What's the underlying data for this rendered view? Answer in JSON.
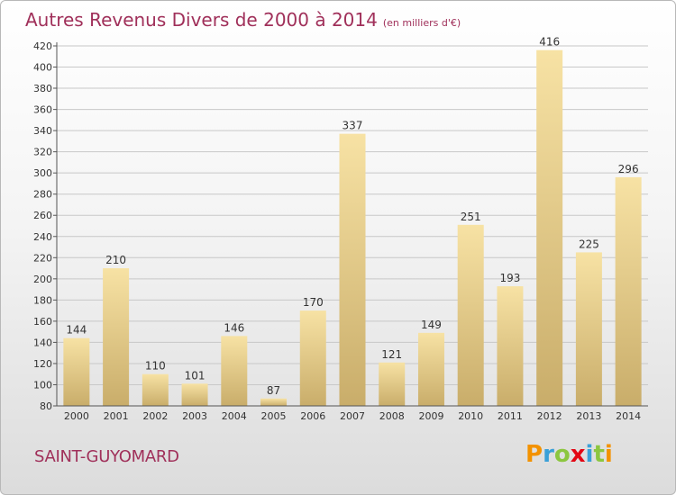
{
  "title": "Autres Revenus Divers de 2000 à 2014",
  "unit": "(en milliers d'€)",
  "commune": "SAINT-GUYOMARD",
  "logo": {
    "letters": [
      "P",
      "r",
      "o",
      "x",
      "i",
      "t",
      "i"
    ],
    "colors": [
      "#f39200",
      "#3aa0d8",
      "#8cc63f",
      "#e30613",
      "#3aa0d8",
      "#8cc63f",
      "#f39200"
    ]
  },
  "colors": {
    "title": "#a0305a",
    "bar_light": "#f7e2a4",
    "bar_dark": "#c9ad6a",
    "gridline": "#c8c8c8"
  },
  "chart_data": {
    "type": "bar",
    "title": "Autres Revenus Divers de 2000 à 2014",
    "categories": [
      "2000",
      "2001",
      "2002",
      "2003",
      "2004",
      "2005",
      "2006",
      "2007",
      "2008",
      "2009",
      "2010",
      "2011",
      "2012",
      "2013",
      "2014"
    ],
    "values": [
      144,
      210,
      110,
      101,
      146,
      87,
      170,
      337,
      121,
      149,
      251,
      193,
      416,
      225,
      296
    ],
    "ylim": [
      80,
      420
    ],
    "yticks": [
      80,
      100,
      120,
      140,
      160,
      180,
      200,
      220,
      240,
      260,
      280,
      300,
      320,
      340,
      360,
      380,
      400,
      420
    ],
    "xlabel": "",
    "ylabel": "",
    "grid": true,
    "data_labels": true
  }
}
